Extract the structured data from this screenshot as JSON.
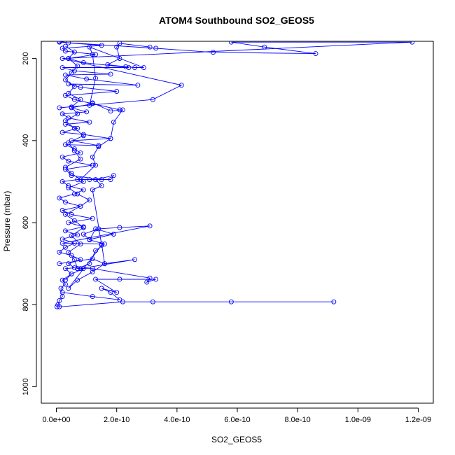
{
  "chart_data": {
    "type": "line",
    "title": "ATOM4 Southbound SO2_GEOS5",
    "xlabel": "SO2_GEOS5",
    "ylabel": "Pressure (mbar)",
    "x_ticks": [
      0,
      2e-10,
      4e-10,
      6e-10,
      8e-10,
      1e-09,
      1.2e-09
    ],
    "x_tick_labels": [
      "0.0e+00",
      "2.0e-10",
      "4.0e-10",
      "6.0e-10",
      "8.0e-10",
      "1.0e-09",
      "1.2e-09"
    ],
    "y_ticks": [
      200,
      400,
      600,
      800,
      1000
    ],
    "y_tick_labels": [
      "200",
      "400",
      "600",
      "800",
      "1000"
    ],
    "xlim": [
      -5e-11,
      1.25e-09
    ],
    "ylim": [
      1040,
      158
    ],
    "y_inverted": true,
    "grid": false,
    "series_color": "#0000ff",
    "marker": "open-circle",
    "series": [
      {
        "points": [
          [
            2e-12,
            805
          ],
          [
            5e-12,
            800
          ],
          [
            1e-11,
            790
          ],
          [
            2e-11,
            780
          ],
          [
            1.5e-11,
            760
          ],
          [
            3e-11,
            750
          ],
          [
            2e-11,
            740
          ],
          [
            5e-11,
            725
          ],
          [
            3e-11,
            712
          ],
          [
            6e-11,
            710
          ],
          [
            4e-11,
            700
          ],
          [
            8e-11,
            690
          ],
          [
            5e-11,
            680
          ],
          [
            1e-11,
            672
          ],
          [
            3e-11,
            660
          ],
          [
            6e-11,
            650
          ],
          [
            2e-11,
            640
          ],
          [
            7e-11,
            630
          ],
          [
            3e-11,
            620
          ],
          [
            9e-11,
            610
          ],
          [
            4e-11,
            600
          ],
          [
            1.2e-10,
            590
          ],
          [
            5e-11,
            580
          ],
          [
            2e-11,
            570
          ],
          [
            8e-11,
            560
          ],
          [
            3e-11,
            550
          ],
          [
            1e-11,
            540
          ],
          [
            6e-11,
            530
          ],
          [
            9e-11,
            520
          ],
          [
            4e-11,
            510
          ],
          [
            2e-11,
            500
          ],
          [
            7e-11,
            495
          ],
          [
            1.5e-10,
            495
          ],
          [
            5e-11,
            485
          ],
          [
            3e-11,
            470
          ],
          [
            1.2e-10,
            460
          ],
          [
            4e-11,
            450
          ],
          [
            2e-11,
            440
          ],
          [
            8e-11,
            430
          ],
          [
            6e-11,
            420
          ],
          [
            3e-11,
            410
          ],
          [
            1.4e-10,
            412
          ],
          [
            5e-11,
            400
          ],
          [
            1.8e-10,
            395
          ],
          [
            9e-11,
            385
          ],
          [
            2e-11,
            380
          ],
          [
            7e-11,
            370
          ],
          [
            3e-11,
            360
          ],
          [
            1.1e-10,
            355
          ],
          [
            4e-11,
            345
          ],
          [
            2e-11,
            335
          ],
          [
            1e-10,
            330
          ],
          [
            5e-11,
            320
          ],
          [
            1.2e-10,
            310
          ],
          [
            2.1e-10,
            325
          ],
          [
            6e-11,
            300
          ],
          [
            3e-11,
            290
          ],
          [
            2e-10,
            280
          ],
          [
            8e-11,
            270
          ],
          [
            4e-11,
            262
          ],
          [
            2.7e-10,
            265
          ],
          [
            1e-10,
            250
          ],
          [
            3e-11,
            240
          ],
          [
            1.8e-10,
            238
          ],
          [
            6e-11,
            230
          ],
          [
            2e-11,
            222
          ],
          [
            2.4e-10,
            222
          ],
          [
            9e-11,
            210
          ],
          [
            4e-11,
            200
          ],
          [
            1.3e-10,
            190
          ],
          [
            3e-11,
            182
          ],
          [
            2e-11,
            175
          ],
          [
            1.5e-10,
            168
          ],
          [
            4e-11,
            162
          ],
          [
            1e-11,
            158
          ]
        ]
      },
      {
        "points": [
          [
            1e-11,
            160
          ],
          [
            3.3e-10,
            175
          ],
          [
            5.2e-10,
            185
          ],
          [
            8.6e-10,
            188
          ],
          [
            6.9e-10,
            172
          ],
          [
            5.8e-10,
            160
          ],
          [
            1.18e-09,
            160
          ],
          [
            2e-11,
            200
          ],
          [
            4.15e-10,
            265
          ],
          [
            3.2e-10,
            300
          ],
          [
            1e-11,
            320
          ]
        ]
      },
      {
        "points": [
          [
            1e-11,
            805
          ],
          [
            2.2e-10,
            793
          ],
          [
            3.2e-10,
            793
          ],
          [
            5.8e-10,
            793
          ],
          [
            9.2e-10,
            793
          ]
        ]
      },
      {
        "points": [
          [
            2e-11,
            770
          ],
          [
            1.2e-10,
            780
          ],
          [
            2.1e-10,
            788
          ],
          [
            1.8e-10,
            770
          ],
          [
            1.5e-10,
            760
          ],
          [
            2e-10,
            770
          ],
          [
            1.3e-10,
            738
          ],
          [
            2.1e-10,
            738
          ],
          [
            3.3e-10,
            738
          ],
          [
            3e-10,
            745
          ],
          [
            3.1e-10,
            735
          ],
          [
            1.2e-10,
            712
          ],
          [
            8e-11,
            712
          ],
          [
            2.6e-10,
            690
          ],
          [
            1.6e-10,
            700
          ],
          [
            1.5e-10,
            652
          ],
          [
            2e-11,
            650
          ],
          [
            3.1e-10,
            608
          ],
          [
            2.1e-10,
            612
          ],
          [
            1.4e-10,
            615
          ],
          [
            9e-11,
            628
          ],
          [
            1.1e-10,
            641
          ],
          [
            1.9e-10,
            628
          ],
          [
            1.3e-10,
            615
          ],
          [
            1.1e-10,
            642
          ],
          [
            1.6e-10,
            652
          ],
          [
            1.3e-10,
            668
          ],
          [
            1.1e-10,
            700
          ],
          [
            7e-11,
            712
          ]
        ]
      },
      {
        "points": [
          [
            1e-11,
            700
          ],
          [
            1.2e-10,
            688
          ],
          [
            1.6e-10,
            700
          ],
          [
            1.2e-10,
            720
          ],
          [
            7e-11,
            740
          ],
          [
            4e-11,
            760
          ],
          [
            1.5e-10,
            655
          ],
          [
            1.2e-10,
            520
          ],
          [
            1.5e-10,
            510
          ],
          [
            1.3e-10,
            495
          ],
          [
            1.9e-10,
            485
          ],
          [
            1.8e-10,
            495
          ],
          [
            1.1e-10,
            495
          ],
          [
            8e-11,
            495
          ],
          [
            1.3e-10,
            460
          ],
          [
            1.2e-10,
            440
          ],
          [
            1.4e-10,
            415
          ],
          [
            1.8e-10,
            395
          ],
          [
            1.9e-10,
            355
          ],
          [
            2.2e-10,
            325
          ],
          [
            1.8e-10,
            328
          ],
          [
            1.2e-10,
            308
          ],
          [
            1.1e-10,
            314
          ],
          [
            1.3e-10,
            248
          ],
          [
            1.2e-10,
            190
          ],
          [
            1.1e-10,
            172
          ],
          [
            2.9e-10,
            222
          ],
          [
            2.6e-10,
            222
          ],
          [
            2.3e-10,
            220
          ],
          [
            1.7e-10,
            215
          ],
          [
            2.1e-10,
            200
          ],
          [
            2e-10,
            172
          ],
          [
            2.1e-10,
            163
          ],
          [
            3.1e-10,
            172
          ]
        ]
      },
      {
        "points": [
          [
            3e-11,
            740
          ],
          [
            5e-11,
            725
          ],
          [
            9e-11,
            712
          ],
          [
            7e-11,
            712
          ],
          [
            6e-11,
            690
          ],
          [
            4e-11,
            672
          ],
          [
            8e-11,
            652
          ],
          [
            5e-11,
            632
          ],
          [
            9e-11,
            612
          ],
          [
            6e-11,
            595
          ],
          [
            3e-11,
            580
          ],
          [
            8e-11,
            560
          ],
          [
            1.1e-10,
            545
          ],
          [
            7e-11,
            530
          ],
          [
            4e-11,
            515
          ],
          [
            9e-11,
            500
          ],
          [
            5e-11,
            480
          ],
          [
            3e-11,
            465
          ],
          [
            8e-11,
            445
          ],
          [
            6e-11,
            425
          ],
          [
            4e-11,
            405
          ],
          [
            9e-11,
            388
          ],
          [
            6e-11,
            370
          ],
          [
            3e-11,
            352
          ],
          [
            7e-11,
            335
          ],
          [
            5e-11,
            318
          ],
          [
            8e-11,
            300
          ],
          [
            4e-11,
            285
          ],
          [
            6e-11,
            268
          ],
          [
            3e-11,
            252
          ],
          [
            5e-11,
            235
          ],
          [
            7e-11,
            218
          ],
          [
            4e-11,
            200
          ],
          [
            6e-11,
            184
          ],
          [
            3e-11,
            170
          ]
        ]
      }
    ]
  }
}
